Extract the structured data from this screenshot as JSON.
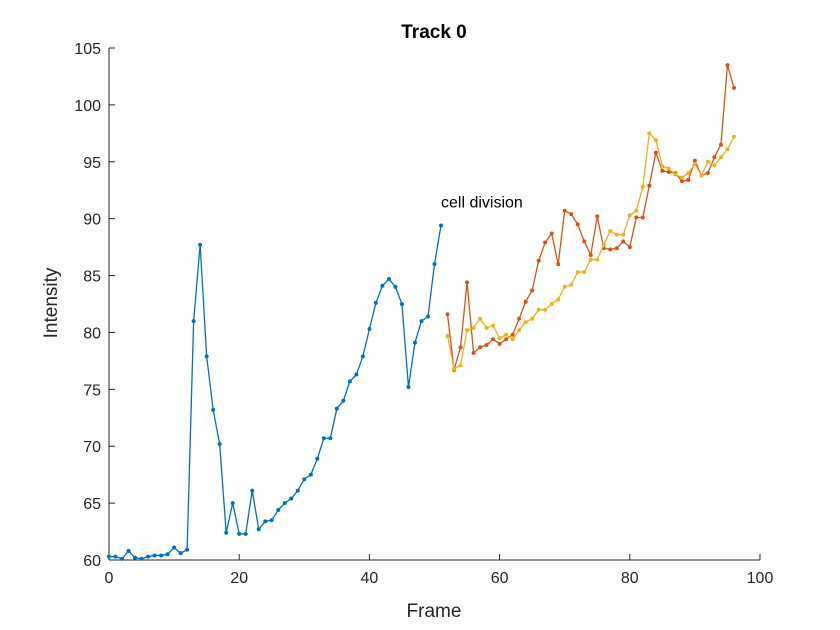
{
  "chart_data": {
    "type": "line",
    "title": "Track 0",
    "xlabel": "Frame",
    "ylabel": "Intensity",
    "xlim": [
      0,
      100
    ],
    "ylim": [
      60,
      105
    ],
    "xticks": [
      0,
      20,
      40,
      60,
      80,
      100
    ],
    "yticks": [
      60,
      65,
      70,
      75,
      80,
      85,
      90,
      95,
      100,
      105
    ],
    "grid": false,
    "legend": "none",
    "annotations": [
      {
        "text": "cell division",
        "x": 51,
        "y": 91
      }
    ],
    "series": [
      {
        "color": "#0072BD",
        "x": [
          0,
          1,
          2,
          3,
          4,
          5,
          6,
          7,
          8,
          9,
          10,
          11,
          12,
          13,
          14,
          15,
          16,
          17,
          18,
          19,
          20,
          21,
          22,
          23,
          24,
          25,
          26,
          27,
          28,
          29,
          30,
          31,
          32,
          33,
          34,
          35,
          36,
          37,
          38,
          39,
          40,
          41,
          42,
          43,
          44,
          45,
          46,
          47,
          48,
          49,
          50,
          51
        ],
        "y": [
          60.3,
          60.3,
          60.1,
          60.8,
          60.2,
          60.1,
          60.3,
          60.4,
          60.4,
          60.5,
          61.1,
          60.6,
          60.9,
          81.0,
          87.7,
          77.9,
          73.2,
          70.2,
          62.4,
          65.0,
          62.3,
          62.3,
          66.1,
          62.7,
          63.4,
          63.5,
          64.4,
          65.0,
          65.4,
          66.1,
          67.1,
          67.5,
          68.9,
          70.7,
          70.7,
          73.3,
          74.0,
          75.7,
          76.3,
          77.9,
          80.3,
          82.6,
          84.1,
          84.7,
          84.0,
          82.5,
          75.2,
          79.1,
          81.0,
          81.4,
          86.0,
          89.4
        ]
      },
      {
        "color": "#D95319",
        "x": [
          52,
          53,
          54,
          55,
          56,
          57,
          58,
          59,
          60,
          61,
          62,
          63,
          64,
          65,
          66,
          67,
          68,
          69,
          70,
          71,
          72,
          73,
          74,
          75,
          76,
          77,
          78,
          79,
          80,
          81,
          82,
          83,
          84,
          85,
          86,
          87,
          88,
          89,
          90,
          91,
          92,
          93,
          94,
          95,
          96
        ],
        "y": [
          81.6,
          76.7,
          78.7,
          84.4,
          78.2,
          78.7,
          78.9,
          79.4,
          79.0,
          79.4,
          79.8,
          81.2,
          82.7,
          83.7,
          86.3,
          87.9,
          88.7,
          86.0,
          90.7,
          90.4,
          89.5,
          88.0,
          86.8,
          90.2,
          87.4,
          87.3,
          87.4,
          88.0,
          87.5,
          90.1,
          90.1,
          92.9,
          95.8,
          94.2,
          94.1,
          94.0,
          93.3,
          93.4,
          95.1,
          93.8,
          94.0,
          95.4,
          96.5,
          103.5,
          101.5
        ]
      },
      {
        "color": "#EDB120",
        "x": [
          52,
          53,
          54,
          55,
          56,
          57,
          58,
          59,
          60,
          61,
          62,
          63,
          64,
          65,
          66,
          67,
          68,
          69,
          70,
          71,
          72,
          73,
          74,
          75,
          76,
          77,
          78,
          79,
          80,
          81,
          82,
          83,
          84,
          85,
          86,
          87,
          88,
          89,
          90,
          91,
          92,
          93,
          94,
          95,
          96
        ],
        "y": [
          79.7,
          76.8,
          77.1,
          80.2,
          80.4,
          81.2,
          80.4,
          80.6,
          79.5,
          79.8,
          79.4,
          80.2,
          80.9,
          81.2,
          82.0,
          82.0,
          82.5,
          82.9,
          84.0,
          84.2,
          85.3,
          85.3,
          86.4,
          86.4,
          87.7,
          88.9,
          88.6,
          88.6,
          90.3,
          90.7,
          92.8,
          97.5,
          96.9,
          94.6,
          94.4,
          93.9,
          93.6,
          94.0,
          94.8,
          93.8,
          95.0,
          94.7,
          95.4,
          96.1,
          97.2
        ]
      }
    ]
  }
}
